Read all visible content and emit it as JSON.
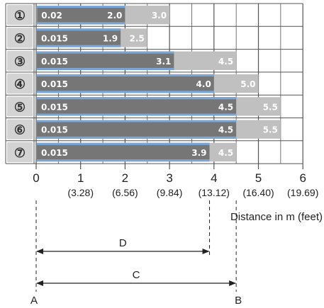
{
  "chart_data": {
    "type": "bar",
    "orientation": "horizontal",
    "title": "",
    "xlabel": "Distance in m (feet)",
    "xlim": [
      0,
      6
    ],
    "x_ticks": [
      "0",
      "1",
      "2",
      "3",
      "4",
      "5",
      "6"
    ],
    "x_ticks_feet": [
      "(3.28)",
      "(6.56)",
      "(9.84)",
      "(13.12)",
      "(16.40)",
      "(19.69)"
    ],
    "grid": true,
    "rows": [
      {
        "label": "①",
        "start": 0.02,
        "start_label": "0.02",
        "dark_end": 2.0,
        "dark_label": "2.0",
        "light_end": 3.0,
        "light_label": "3.0"
      },
      {
        "label": "②",
        "start": 0.015,
        "start_label": "0.015",
        "dark_end": 1.9,
        "dark_label": "1.9",
        "light_end": 2.5,
        "light_label": "2.5"
      },
      {
        "label": "③",
        "start": 0.015,
        "start_label": "0.015",
        "dark_end": 3.1,
        "dark_label": "3.1",
        "light_end": 4.5,
        "light_label": "4.5"
      },
      {
        "label": "④",
        "start": 0.015,
        "start_label": "0.015",
        "dark_end": 4.0,
        "dark_label": "4.0",
        "light_end": 5.0,
        "light_label": "5.0"
      },
      {
        "label": "⑤",
        "start": 0.015,
        "start_label": "0.015",
        "dark_end": 4.5,
        "dark_label": "4.5",
        "light_end": 5.5,
        "light_label": "5.5"
      },
      {
        "label": "⑥",
        "start": 0.015,
        "start_label": "0.015",
        "dark_end": 4.5,
        "dark_label": "4.5",
        "light_end": 5.5,
        "light_label": "5.5"
      },
      {
        "label": "⑦",
        "start": 0.015,
        "start_label": "0.015",
        "dark_end": 3.9,
        "dark_label": "3.9",
        "light_end": 4.5,
        "light_label": "4.5"
      }
    ],
    "dimension_lines": [
      {
        "label": "D",
        "from": 0,
        "to": 3.9
      },
      {
        "label": "C",
        "from": 0,
        "to": 4.5
      }
    ],
    "markers": [
      {
        "label": "A",
        "at": 0
      },
      {
        "label": "B",
        "at": 4.5
      }
    ],
    "colors": {
      "dark_bar": "#767676",
      "light_bar": "#c0c0c0",
      "accent_strip": "#7aa6d6",
      "row_label_bg": "#d3d3d3",
      "grid": "#555555"
    }
  }
}
